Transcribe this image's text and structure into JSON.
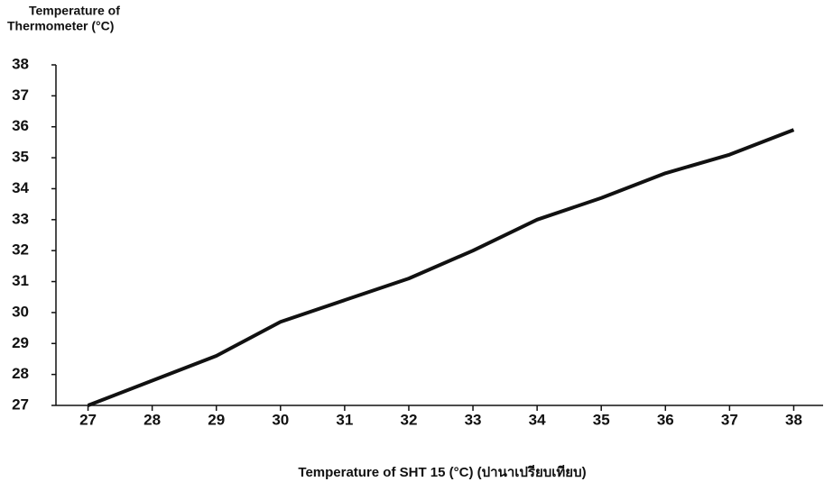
{
  "chart_data": {
    "type": "line",
    "y_label": [
      "Temperature of",
      "Thermometer (°C)"
    ],
    "x_label": "Temperature of SHT 15 (°C) (ปานาเปรียบเทียบ)",
    "x": [
      27,
      28,
      29,
      30,
      31,
      32,
      33,
      34,
      35,
      36,
      37,
      38
    ],
    "series": [
      {
        "color": "#111111",
        "values": [
          27,
          27.8,
          28.6,
          29.7,
          30.4,
          31.1,
          32,
          33,
          33.7,
          34.5,
          35.1,
          35.9
        ]
      }
    ],
    "xlim": [
      26.5,
      38.5
    ],
    "xticks": [
      27,
      28,
      29,
      30,
      31,
      32,
      33,
      34,
      35,
      36,
      37,
      38
    ],
    "ylim": [
      27,
      38
    ],
    "yticks": [
      27,
      28,
      29,
      30,
      31,
      32,
      33,
      34,
      35,
      36,
      37,
      38
    ],
    "grid": false
  }
}
